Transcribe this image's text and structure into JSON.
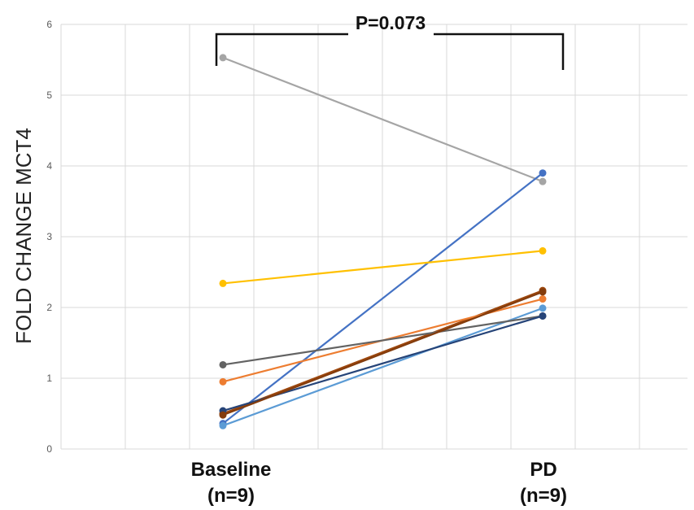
{
  "chart_data": {
    "type": "line",
    "x_categories": [
      {
        "name": "Baseline",
        "n": "(n=9)"
      },
      {
        "name": "PD",
        "n": "(n=9)"
      }
    ],
    "ylabel": "FOLD CHANGE MCT4",
    "ylim": [
      0,
      6
    ],
    "yticks": [
      "0",
      "1",
      "2",
      "3",
      "4",
      "5",
      "6"
    ],
    "grid": true,
    "legend": "none",
    "annotation": "P=0.073",
    "series": [
      {
        "color": "#A5A5A5",
        "values": [
          5.53,
          3.78
        ]
      },
      {
        "color": "#4472C4",
        "values": [
          0.36,
          3.9
        ]
      },
      {
        "color": "#FFC000",
        "values": [
          2.34,
          2.8
        ]
      },
      {
        "color": "#9E480E",
        "values": [
          0.5,
          2.24
        ]
      },
      {
        "color": "#ED7D31",
        "values": [
          0.95,
          2.12
        ]
      },
      {
        "color": "#5B9BD5",
        "values": [
          0.33,
          1.99
        ]
      },
      {
        "color": "#636363",
        "values": [
          1.19,
          1.88
        ]
      },
      {
        "color": "#264478",
        "values": [
          0.54,
          1.88
        ]
      },
      {
        "color": "#843C0C",
        "values": [
          0.48,
          2.22
        ]
      }
    ]
  }
}
